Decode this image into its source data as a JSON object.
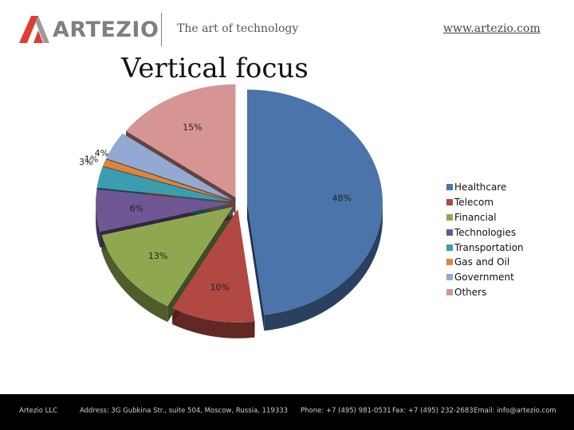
{
  "header": {
    "logo_text": "ARTEZIO",
    "tagline": "The art of technology",
    "website": "www.artezio.com"
  },
  "page_title": "Vertical focus",
  "colors": {
    "logo_red": "#e03c31",
    "footer_bg": "#000000"
  },
  "chart_data": {
    "type": "pie",
    "style": "3d-exploded",
    "legend_position": "right",
    "categories": [
      "Healthcare",
      "Telecom",
      "Financial",
      "Technologies",
      "Transportation",
      "Gas and Oil",
      "Government",
      "Others"
    ],
    "values": [
      48,
      10,
      13,
      6,
      3,
      1,
      4,
      15
    ],
    "labels": [
      "48%",
      "10%",
      "13%",
      "6%",
      "3%",
      "1%",
      "4%",
      "15%"
    ],
    "colors": [
      "#4a74aa",
      "#b24842",
      "#8fa84f",
      "#6e5792",
      "#3c9db1",
      "#dd8638",
      "#93a9d2",
      "#d69593"
    ]
  },
  "footer": {
    "company": "Artezio LLC",
    "address": "Address: 3G Gubkina Str., suite 504, Moscow, Russia, 119333",
    "phone": "Phone: +7 (495) 981-0531",
    "fax": "Fax: +7 (495) 232-2683",
    "email": "Email: info@artezio.com"
  }
}
